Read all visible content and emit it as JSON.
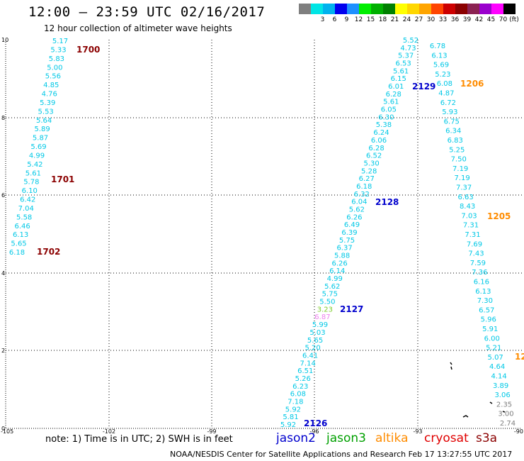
{
  "title": "12:00 – 23:59 UTC 02/16/2017",
  "subtitle": "12 hour collection of altimeter wave heights",
  "scale": {
    "unit": "(ft)",
    "colors": [
      "#7f7f7f",
      "#00e5e5",
      "#00b2ee",
      "#0000ee",
      "#1e90ff",
      "#00ee00",
      "#00b000",
      "#008000",
      "#ffff00",
      "#ffd700",
      "#ffa500",
      "#ff4500",
      "#cd0000",
      "#8b0000",
      "#8b2252",
      "#9a00cd",
      "#ff00ff",
      "#000000"
    ],
    "labels": [
      "",
      "3",
      "6",
      "9",
      "12",
      "15",
      "18",
      "21",
      "24",
      "27",
      "30",
      "33",
      "36",
      "39",
      "42",
      "45",
      "70",
      ""
    ]
  },
  "axes": {
    "x_ticks": [
      "-105",
      "-102",
      "-99",
      "-96",
      "-93",
      "-90"
    ],
    "y_ticks": [
      "10",
      "8",
      "6",
      "4",
      "2",
      "0"
    ]
  },
  "tracks": [
    {
      "id": "left",
      "color": "#00c8e6",
      "values": [
        "5.17",
        "5.33",
        "5.83",
        "5.00",
        "5.56",
        "4.85",
        "4.76",
        "5.39",
        "5.53",
        "5.64",
        "5.89",
        "5.87",
        "5.69",
        "4.99",
        "5.42",
        "5.61",
        "5.78",
        "6.10",
        "6.42",
        "7.04",
        "5.58",
        "6.46",
        "6.13",
        "5.65",
        "6.18"
      ]
    },
    {
      "id": "center",
      "color": "#00c8e6",
      "values": [
        "5.52",
        "4.73",
        "5.37",
        "6.53",
        "5.61",
        "6.15",
        "6.01",
        "6.28",
        "5.61",
        "6.05",
        "6.30",
        "5.38",
        "6.24",
        "6.06",
        "6.28",
        "6.52",
        "5.30",
        "5.28",
        "6.27",
        "6.18",
        "6.32",
        "6.04",
        "5.62",
        "6.26",
        "6.49",
        "6.39",
        "5.75",
        "6.37",
        "5.88",
        "6.26",
        "6.14",
        "4.99",
        "5.62",
        "5.75",
        "5.50",
        "3.23",
        "6.87",
        "5.99",
        "5.03",
        "5.65",
        "5.20",
        "6.41",
        "7.14",
        "6.51",
        "5.26",
        "6.23",
        "6.08",
        "7.18",
        "5.92",
        "5.81",
        "5.92"
      ]
    },
    {
      "id": "right",
      "color": "#00c8e6",
      "values": [
        "6.78",
        "6.13",
        "5.69",
        "5.23",
        "6.08",
        "4.87",
        "6.72",
        "5.93",
        "6.75",
        "6.34",
        "6.83",
        "5.25",
        "7.50",
        "7.19",
        "7.19",
        "7.37",
        "6.63",
        "8.43",
        "7.03",
        "7.31",
        "7.31",
        "7.69",
        "7.43",
        "7.59",
        "7.36",
        "6.16",
        "6.13",
        "7.30",
        "6.57",
        "5.96",
        "5.91",
        "6.00",
        "5.21",
        "5.07",
        "4.64",
        "4.14",
        "3.89",
        "3.06",
        "2.35",
        "3.00",
        "2.74"
      ]
    }
  ],
  "track_labels": [
    {
      "text": "1700",
      "color": "#8b0000"
    },
    {
      "text": "1701",
      "color": "#8b0000"
    },
    {
      "text": "1702",
      "color": "#8b0000"
    },
    {
      "text": "2129",
      "color": "#0000cd"
    },
    {
      "text": "2128",
      "color": "#0000cd"
    },
    {
      "text": "2127",
      "color": "#0000cd"
    },
    {
      "text": "2126",
      "color": "#0000cd"
    },
    {
      "text": "1206",
      "color": "#ff8c00"
    },
    {
      "text": "1205",
      "color": "#ff8c00"
    },
    {
      "text": "12",
      "color": "#ff8c00"
    }
  ],
  "note": "note: 1) Time is in UTC; 2) SWH is in feet",
  "legend": [
    {
      "text": "jason2",
      "color": "#0000cd"
    },
    {
      "text": "jason3",
      "color": "#00a000"
    },
    {
      "text": "altika",
      "color": "#ff8c00"
    },
    {
      "text": "cryosat",
      "color": "#e00000"
    },
    {
      "text": "s3a",
      "color": "#8b0000"
    }
  ],
  "credit": "NOAA/NESDIS Center for Satellite Applications and Research    Feb 17 13:27:55 UTC 2017"
}
